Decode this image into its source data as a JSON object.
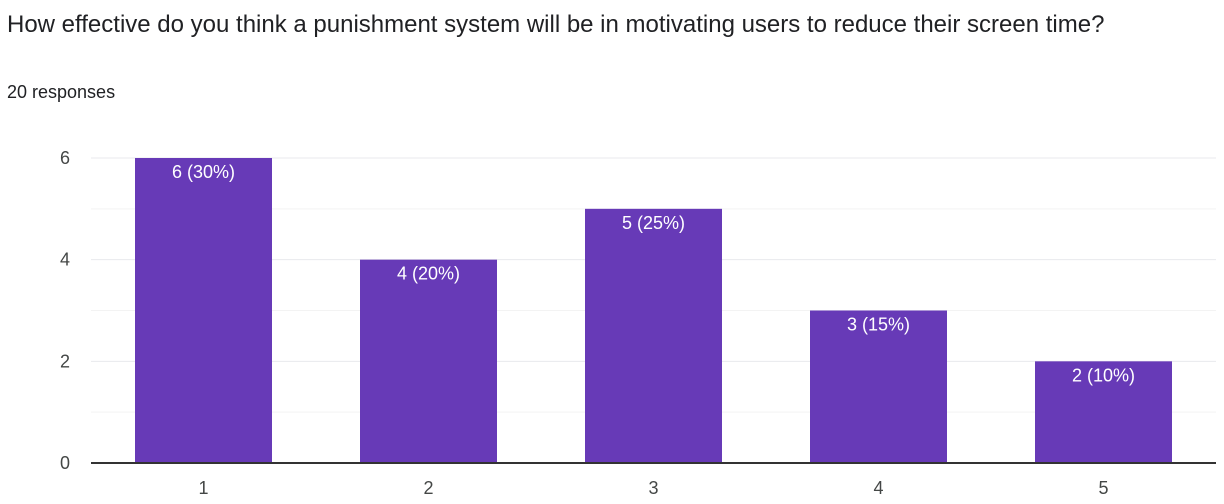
{
  "question": {
    "title": "How effective do you think a punishment system will be in motivating users to reduce their screen time?",
    "responses": "20 responses"
  },
  "colors": {
    "bar": "#673ab7",
    "gridline": "#e8eaed",
    "minor_gridline": "#f3f3f3",
    "axis": "#333333"
  },
  "chart_data": {
    "type": "bar",
    "categories": [
      "1",
      "2",
      "3",
      "4",
      "5"
    ],
    "values": [
      6,
      4,
      5,
      3,
      2
    ],
    "data_labels": [
      "6 (30%)",
      "4 (20%)",
      "5 (25%)",
      "3 (15%)",
      "2 (10%)"
    ],
    "ylim": [
      0,
      6
    ],
    "yticks": [
      0,
      2,
      4,
      6
    ],
    "grid": true
  }
}
